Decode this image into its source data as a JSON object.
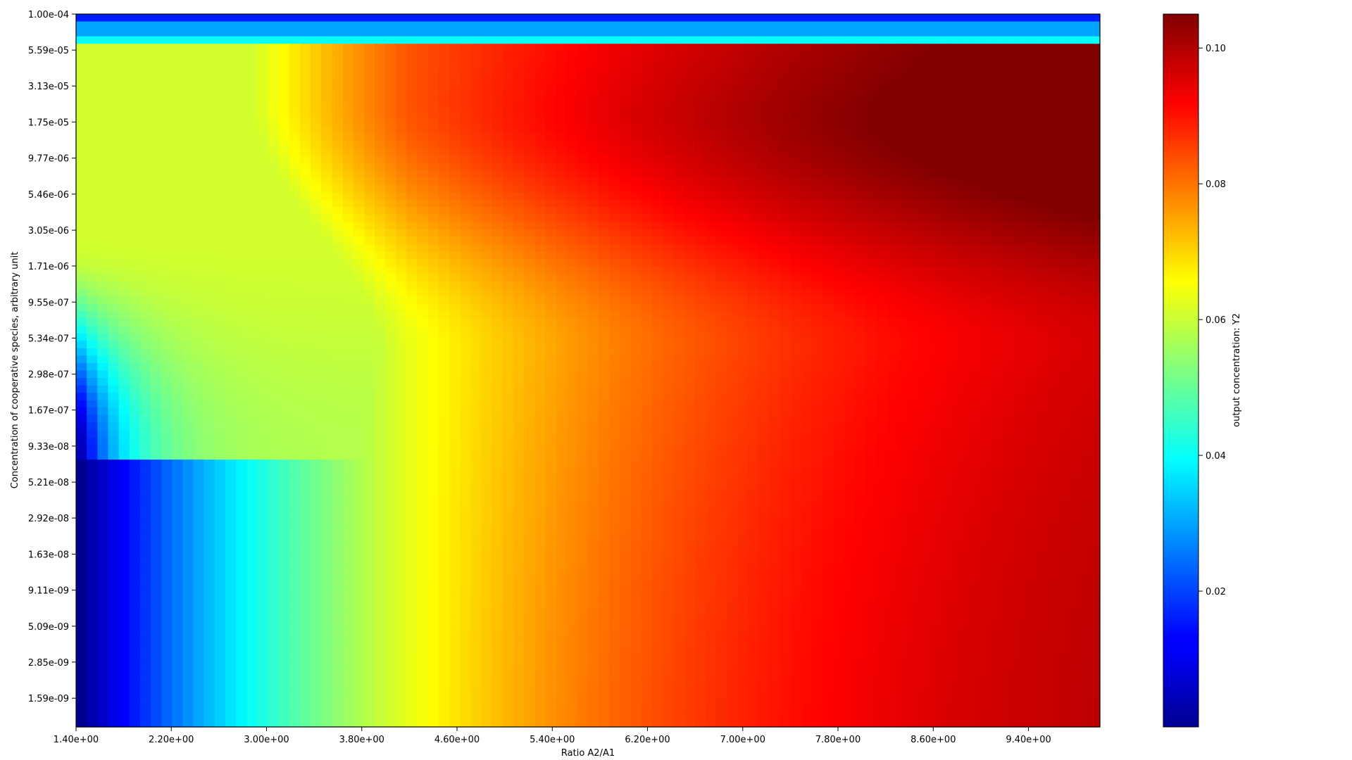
{
  "chart_data": {
    "type": "heatmap",
    "xlabel": "Ratio A2/A1",
    "ylabel": "Concentration of cooperative species, arbitrary unit",
    "colorbar_label": "output concentration: Y2",
    "colormap": "jet",
    "x_range": [
      1.4,
      10.0
    ],
    "y_range": [
      1e-09,
      0.0001
    ],
    "y_scale": "log",
    "value_range": [
      0.0,
      0.105
    ],
    "x_ticks": [
      "1.40e+00",
      "2.20e+00",
      "3.00e+00",
      "3.80e+00",
      "4.60e+00",
      "5.40e+00",
      "6.20e+00",
      "7.00e+00",
      "7.80e+00",
      "8.60e+00",
      "9.40e+00"
    ],
    "y_ticks": [
      "1.00e-04",
      "5.59e-05",
      "3.13e-05",
      "1.75e-05",
      "9.77e-06",
      "5.46e-06",
      "3.05e-06",
      "1.71e-06",
      "9.55e-07",
      "5.34e-07",
      "2.98e-07",
      "1.67e-07",
      "9.33e-08",
      "5.21e-08",
      "2.92e-08",
      "1.63e-08",
      "9.11e-09",
      "5.09e-09",
      "2.85e-09",
      "1.59e-09"
    ],
    "colorbar_ticks": [
      "0.02",
      "0.04",
      "0.06",
      "0.08",
      "0.10"
    ],
    "colorbar_tick_values": [
      0.02,
      0.04,
      0.06,
      0.08,
      0.1
    ],
    "grid": false
  }
}
